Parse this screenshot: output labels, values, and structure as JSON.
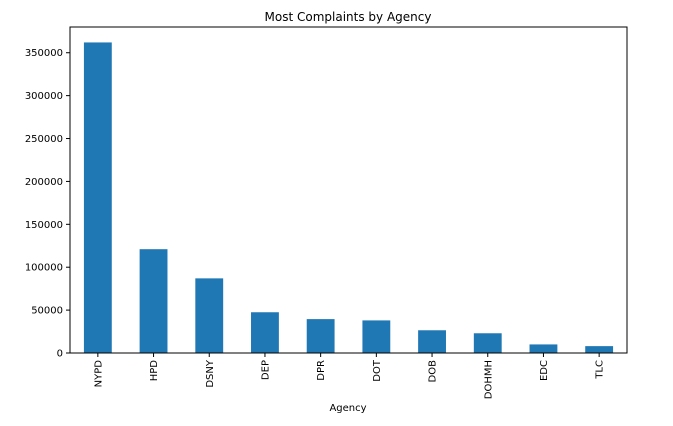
{
  "chart_data": {
    "type": "bar",
    "title": "Most Complaints by Agency",
    "xlabel": "Agency",
    "ylabel": "",
    "categories": [
      "NYPD",
      "HPD",
      "DSNY",
      "DEP",
      "DPR",
      "DOT",
      "DOB",
      "DOHMH",
      "EDC",
      "TLC"
    ],
    "values": [
      362000,
      121000,
      87000,
      47500,
      39500,
      38000,
      26500,
      23000,
      10000,
      8000
    ],
    "yticks": [
      0,
      50000,
      100000,
      150000,
      200000,
      250000,
      300000,
      350000
    ],
    "ylim": [
      0,
      380000
    ],
    "bar_color": "#1f77b4",
    "grid": false,
    "legend": "none"
  }
}
